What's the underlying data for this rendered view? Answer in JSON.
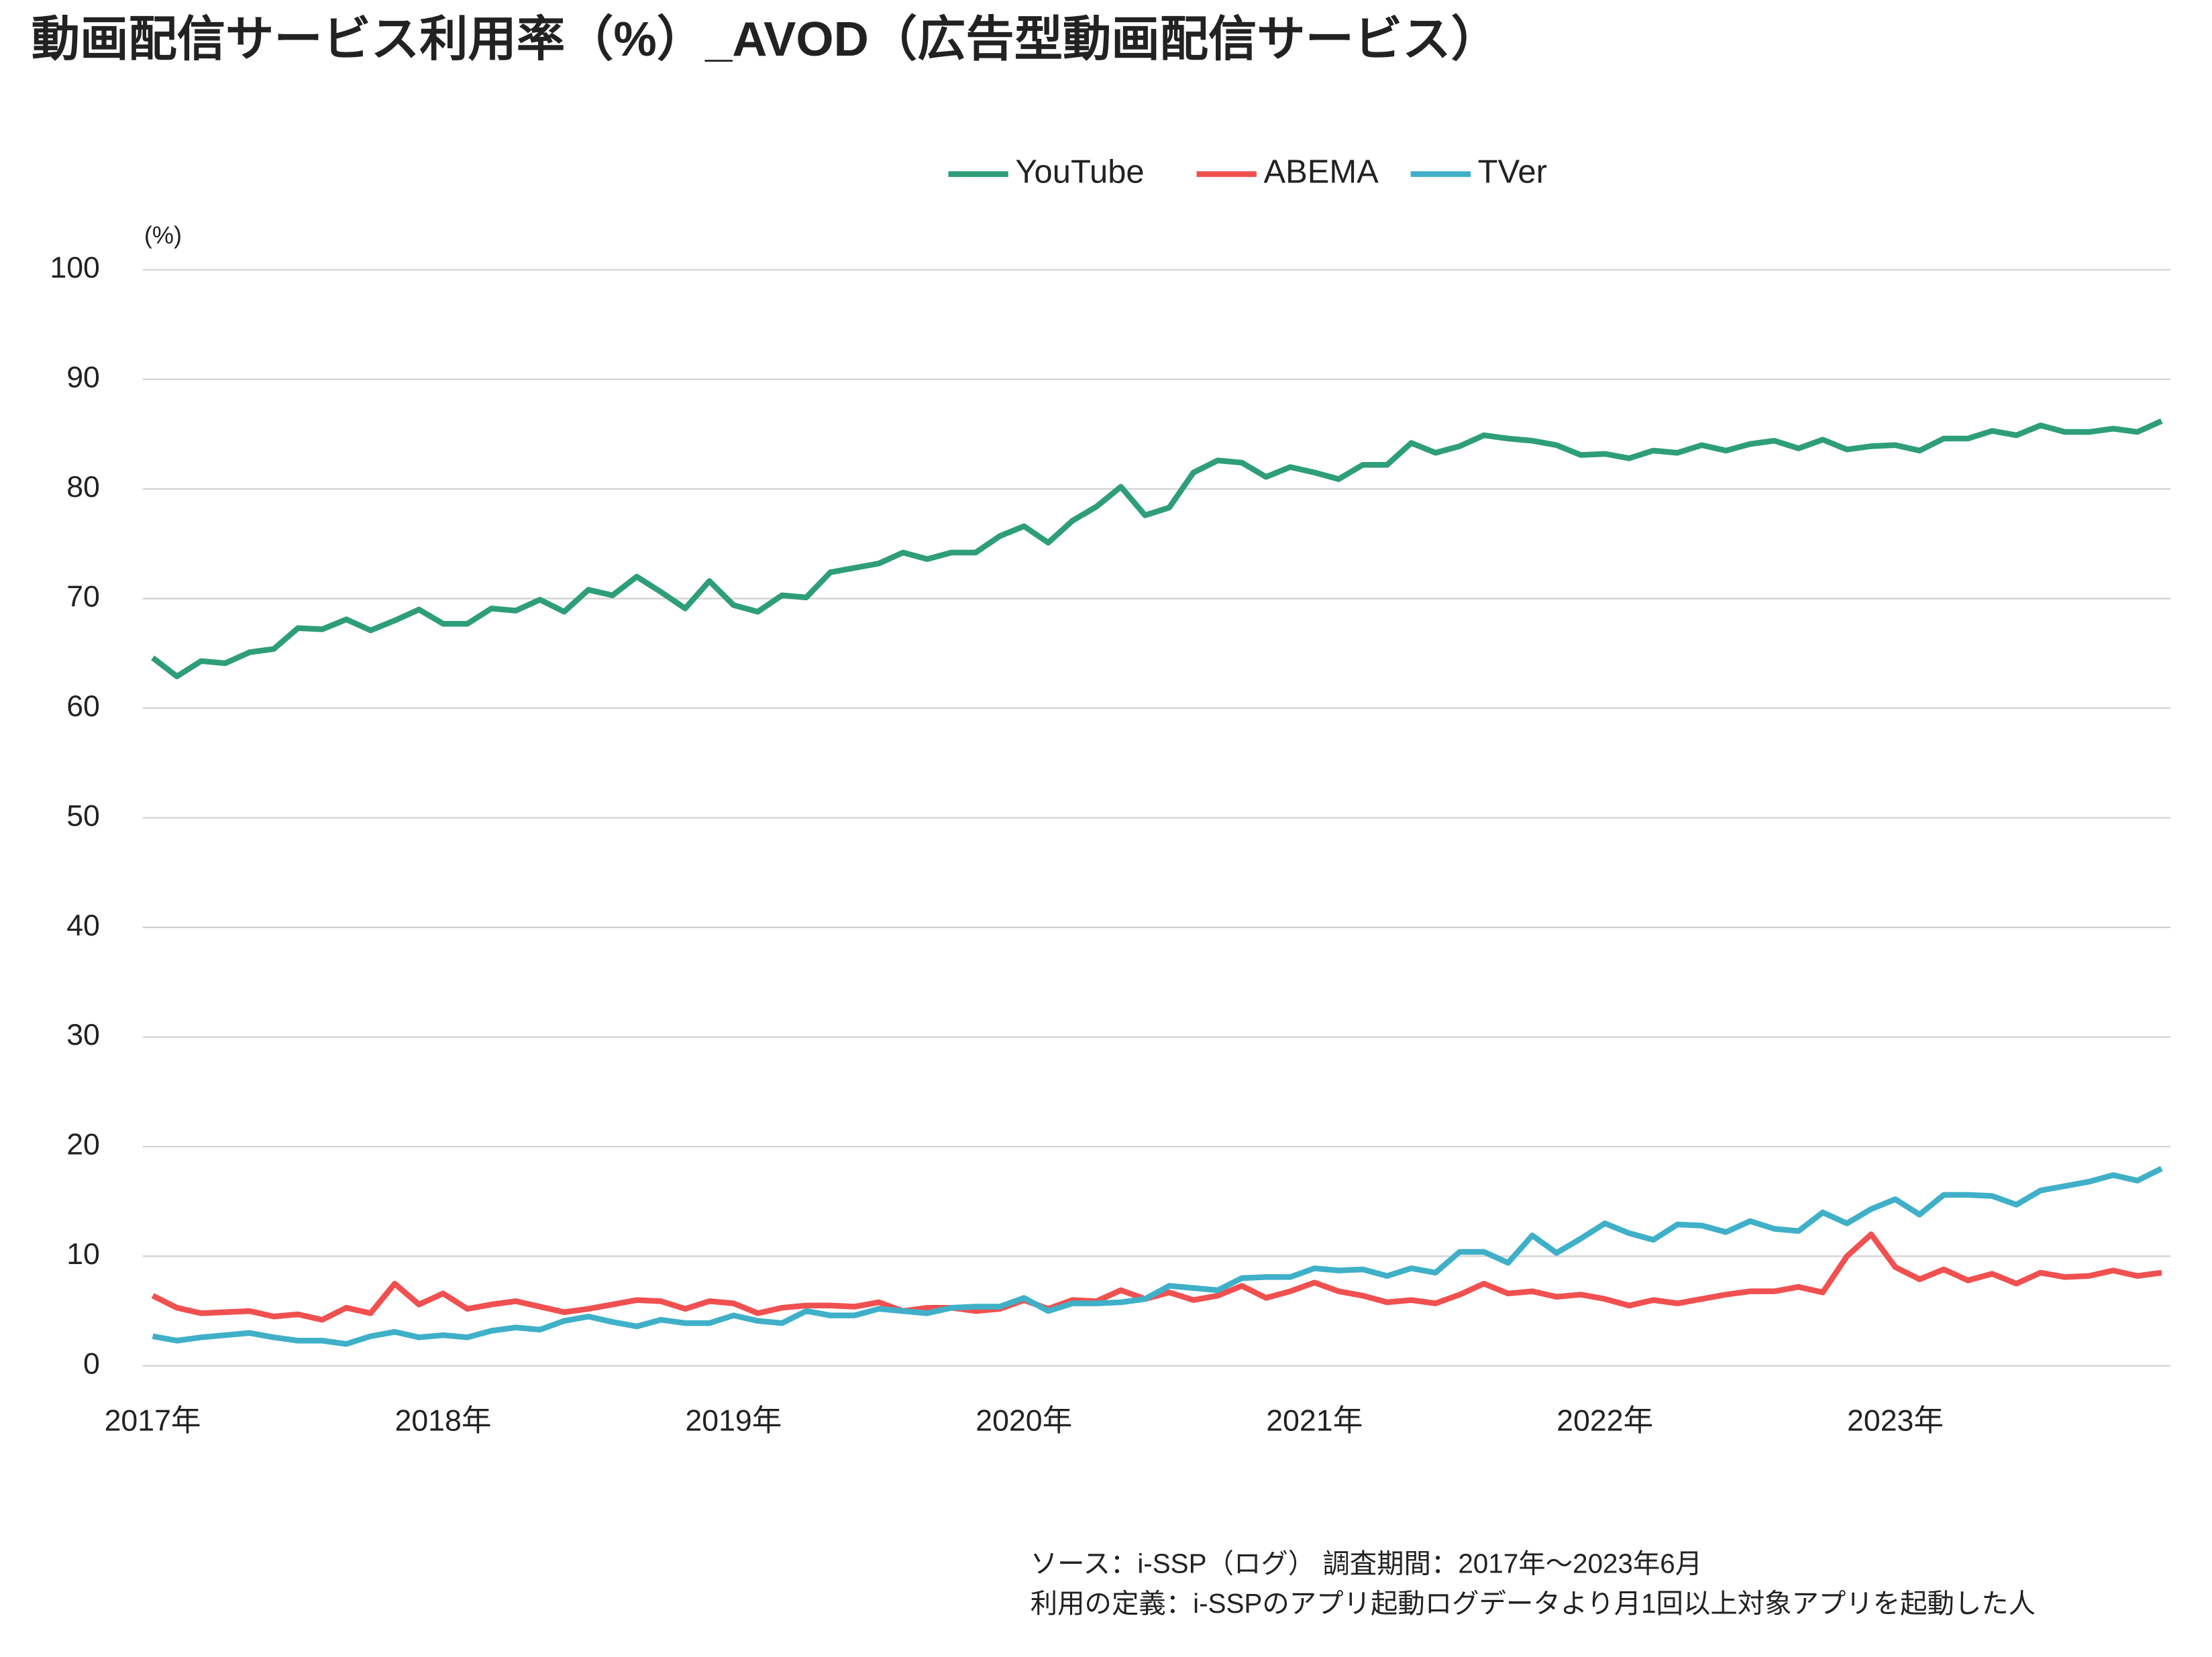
{
  "chart_data": {
    "type": "line",
    "title": "動画配信サービス利用率（%）_AVOD（広告型動画配信サービス）",
    "y_unit_label": "(%)",
    "notes": [
      "ソース：i-SSP（ログ） 調査期間：2017年〜2023年6月",
      "利用の定義：i-SSPのアプリ起動ログデータより月1回以上対象アプリを起動した人"
    ],
    "categories": [
      "2017年",
      null,
      null,
      null,
      null,
      null,
      null,
      null,
      null,
      null,
      null,
      null,
      "2018年",
      null,
      null,
      null,
      null,
      null,
      null,
      null,
      null,
      null,
      null,
      null,
      "2019年",
      null,
      null,
      null,
      null,
      null,
      null,
      null,
      null,
      null,
      null,
      null,
      "2020年",
      null,
      null,
      null,
      null,
      null,
      null,
      null,
      null,
      null,
      null,
      null,
      "2021年",
      null,
      null,
      null,
      null,
      null,
      null,
      null,
      null,
      null,
      null,
      null,
      "2022年",
      null,
      null,
      null,
      null,
      null,
      null,
      null,
      null,
      null,
      null,
      null,
      "2023年",
      null,
      null,
      null,
      null,
      null,
      null,
      null,
      null,
      null,
      null,
      null
    ],
    "series": [
      {
        "name": "YouTube",
        "color": "#2e9e79",
        "values": [
          64.6,
          62.9,
          64.3,
          64.1,
          65.1,
          65.4,
          67.3,
          67.2,
          68.1,
          67.1,
          68.0,
          69.0,
          67.7,
          67.7,
          69.1,
          68.9,
          69.9,
          68.8,
          70.8,
          70.3,
          72.0,
          70.6,
          69.1,
          71.6,
          69.4,
          68.8,
          70.3,
          70.1,
          72.4,
          72.8,
          73.2,
          74.2,
          73.6,
          74.2,
          74.2,
          75.7,
          76.6,
          75.1,
          77.1,
          78.4,
          80.2,
          77.6,
          78.3,
          81.5,
          82.6,
          82.4,
          81.1,
          82.0,
          81.5,
          80.9,
          82.2,
          82.2,
          84.2,
          83.3,
          83.9,
          84.9,
          84.6,
          84.4,
          84.0,
          83.1,
          83.2,
          82.8,
          83.5,
          83.3,
          84.0,
          83.5,
          84.1,
          84.4,
          83.7,
          84.5,
          83.6,
          83.9,
          84.0,
          83.5,
          84.6,
          84.6,
          85.3,
          84.9,
          85.8,
          85.2,
          85.2,
          85.5,
          85.2,
          86.2
        ]
      },
      {
        "name": "ABEMA",
        "color": "#f05050",
        "values": [
          6.4,
          5.3,
          4.8,
          4.9,
          5.0,
          4.5,
          4.7,
          4.2,
          5.3,
          4.8,
          7.5,
          5.6,
          6.6,
          5.2,
          5.6,
          5.9,
          5.4,
          4.9,
          5.2,
          5.6,
          6.0,
          5.9,
          5.2,
          5.9,
          5.7,
          4.8,
          5.3,
          5.5,
          5.5,
          5.4,
          5.8,
          5.0,
          5.3,
          5.3,
          5.0,
          5.2,
          6.0,
          5.2,
          6.0,
          5.9,
          6.9,
          6.1,
          6.7,
          6.0,
          6.4,
          7.3,
          6.2,
          6.8,
          7.6,
          6.8,
          6.4,
          5.8,
          6.0,
          5.7,
          6.5,
          7.5,
          6.6,
          6.8,
          6.3,
          6.5,
          6.1,
          5.5,
          6.0,
          5.7,
          6.1,
          6.5,
          6.8,
          6.8,
          7.2,
          6.7,
          10.0,
          12.0,
          9.0,
          7.9,
          8.8,
          7.8,
          8.4,
          7.5,
          8.5,
          8.1,
          8.2,
          8.7,
          8.2,
          8.5
        ]
      },
      {
        "name": "TVer",
        "color": "#3fb0c8",
        "values": [
          2.7,
          2.3,
          2.6,
          2.8,
          3.0,
          2.6,
          2.3,
          2.3,
          2.0,
          2.7,
          3.1,
          2.6,
          2.8,
          2.6,
          3.2,
          3.5,
          3.3,
          4.1,
          4.5,
          4.0,
          3.6,
          4.2,
          3.9,
          3.9,
          4.6,
          4.1,
          3.9,
          5.0,
          4.6,
          4.6,
          5.2,
          5.0,
          4.8,
          5.3,
          5.4,
          5.4,
          6.2,
          5.0,
          5.7,
          5.7,
          5.8,
          6.1,
          7.3,
          7.1,
          6.9,
          8.0,
          8.1,
          8.1,
          8.9,
          8.7,
          8.8,
          8.2,
          8.9,
          8.5,
          10.4,
          10.4,
          9.4,
          11.9,
          10.3,
          11.6,
          13.0,
          12.1,
          11.5,
          12.9,
          12.8,
          12.2,
          13.2,
          12.5,
          12.3,
          14.0,
          13.0,
          14.3,
          15.2,
          13.8,
          15.6,
          15.6,
          15.5,
          14.7,
          16.0,
          16.4,
          16.8,
          17.4,
          16.9,
          18.0
        ]
      }
    ],
    "ylim": [
      0,
      100
    ],
    "yticks": [
      0,
      10,
      20,
      30,
      40,
      50,
      60,
      70,
      80,
      90,
      100
    ],
    "grid": true,
    "legend": "top"
  }
}
